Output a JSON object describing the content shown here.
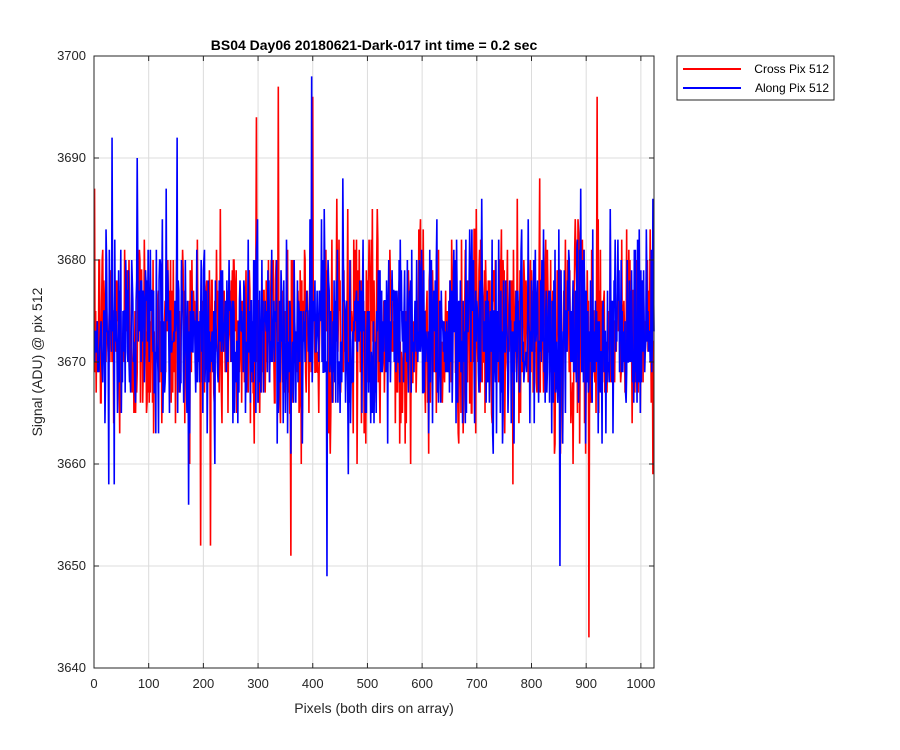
{
  "chart_data": {
    "type": "line",
    "title": "BS04 Day06 20180621-Dark-017 int time = 0.2 sec",
    "xlabel": "Pixels (both dirs on array)",
    "ylabel": "Signal (ADU) @ pix 512",
    "xlim": [
      0,
      1024
    ],
    "ylim": [
      3640,
      3700
    ],
    "xticks": [
      "0",
      "100",
      "200",
      "300",
      "400",
      "500",
      "600",
      "700",
      "800",
      "900",
      "1000"
    ],
    "yticks": [
      "3640",
      "3650",
      "3660",
      "3670",
      "3680",
      "3690",
      "3700"
    ],
    "grid": true,
    "legend_position": "outside-top-right",
    "x_range": [
      1,
      1024
    ],
    "series": [
      {
        "name": "Cross Pix 512",
        "color": "#ff0000",
        "mean": 3673,
        "sd": 5.2,
        "extremes": [
          [
            213,
            3652
          ],
          [
            337,
            3697
          ],
          [
            400,
            3696
          ],
          [
            905,
            3643
          ],
          [
            920,
            3696
          ],
          [
            297,
            3694
          ]
        ]
      },
      {
        "name": "Along Pix 512",
        "color": "#0000ff",
        "mean": 3673,
        "sd": 4.8,
        "extremes": [
          [
            398,
            3698
          ],
          [
            426,
            3649
          ],
          [
            152,
            3692
          ],
          [
            33,
            3692
          ],
          [
            455,
            3688
          ],
          [
            852,
            3650
          ]
        ]
      }
    ]
  }
}
